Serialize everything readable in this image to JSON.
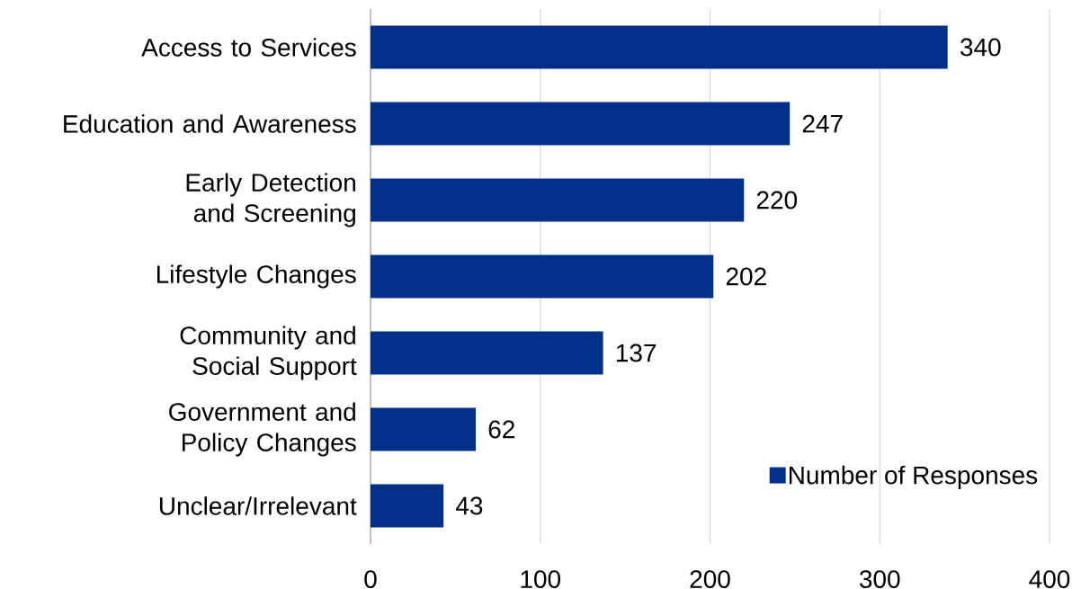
{
  "chart_data": {
    "type": "bar",
    "orientation": "horizontal",
    "categories": [
      "Access to Services",
      "Education and Awareness",
      "Early Detection and Screening",
      "Lifestyle Changes",
      "Community and Social Support",
      "Government and Policy Changes",
      "Unclear/Irrelevant"
    ],
    "series": [
      {
        "name": "Number of Responses",
        "color": "#003087",
        "values": [
          340,
          247,
          220,
          202,
          137,
          62,
          43
        ]
      }
    ],
    "xlim": [
      0,
      400
    ],
    "xticks": [
      0,
      100,
      200,
      300,
      400
    ],
    "grid": "x",
    "legend": "bottom right",
    "data_labels": true
  }
}
